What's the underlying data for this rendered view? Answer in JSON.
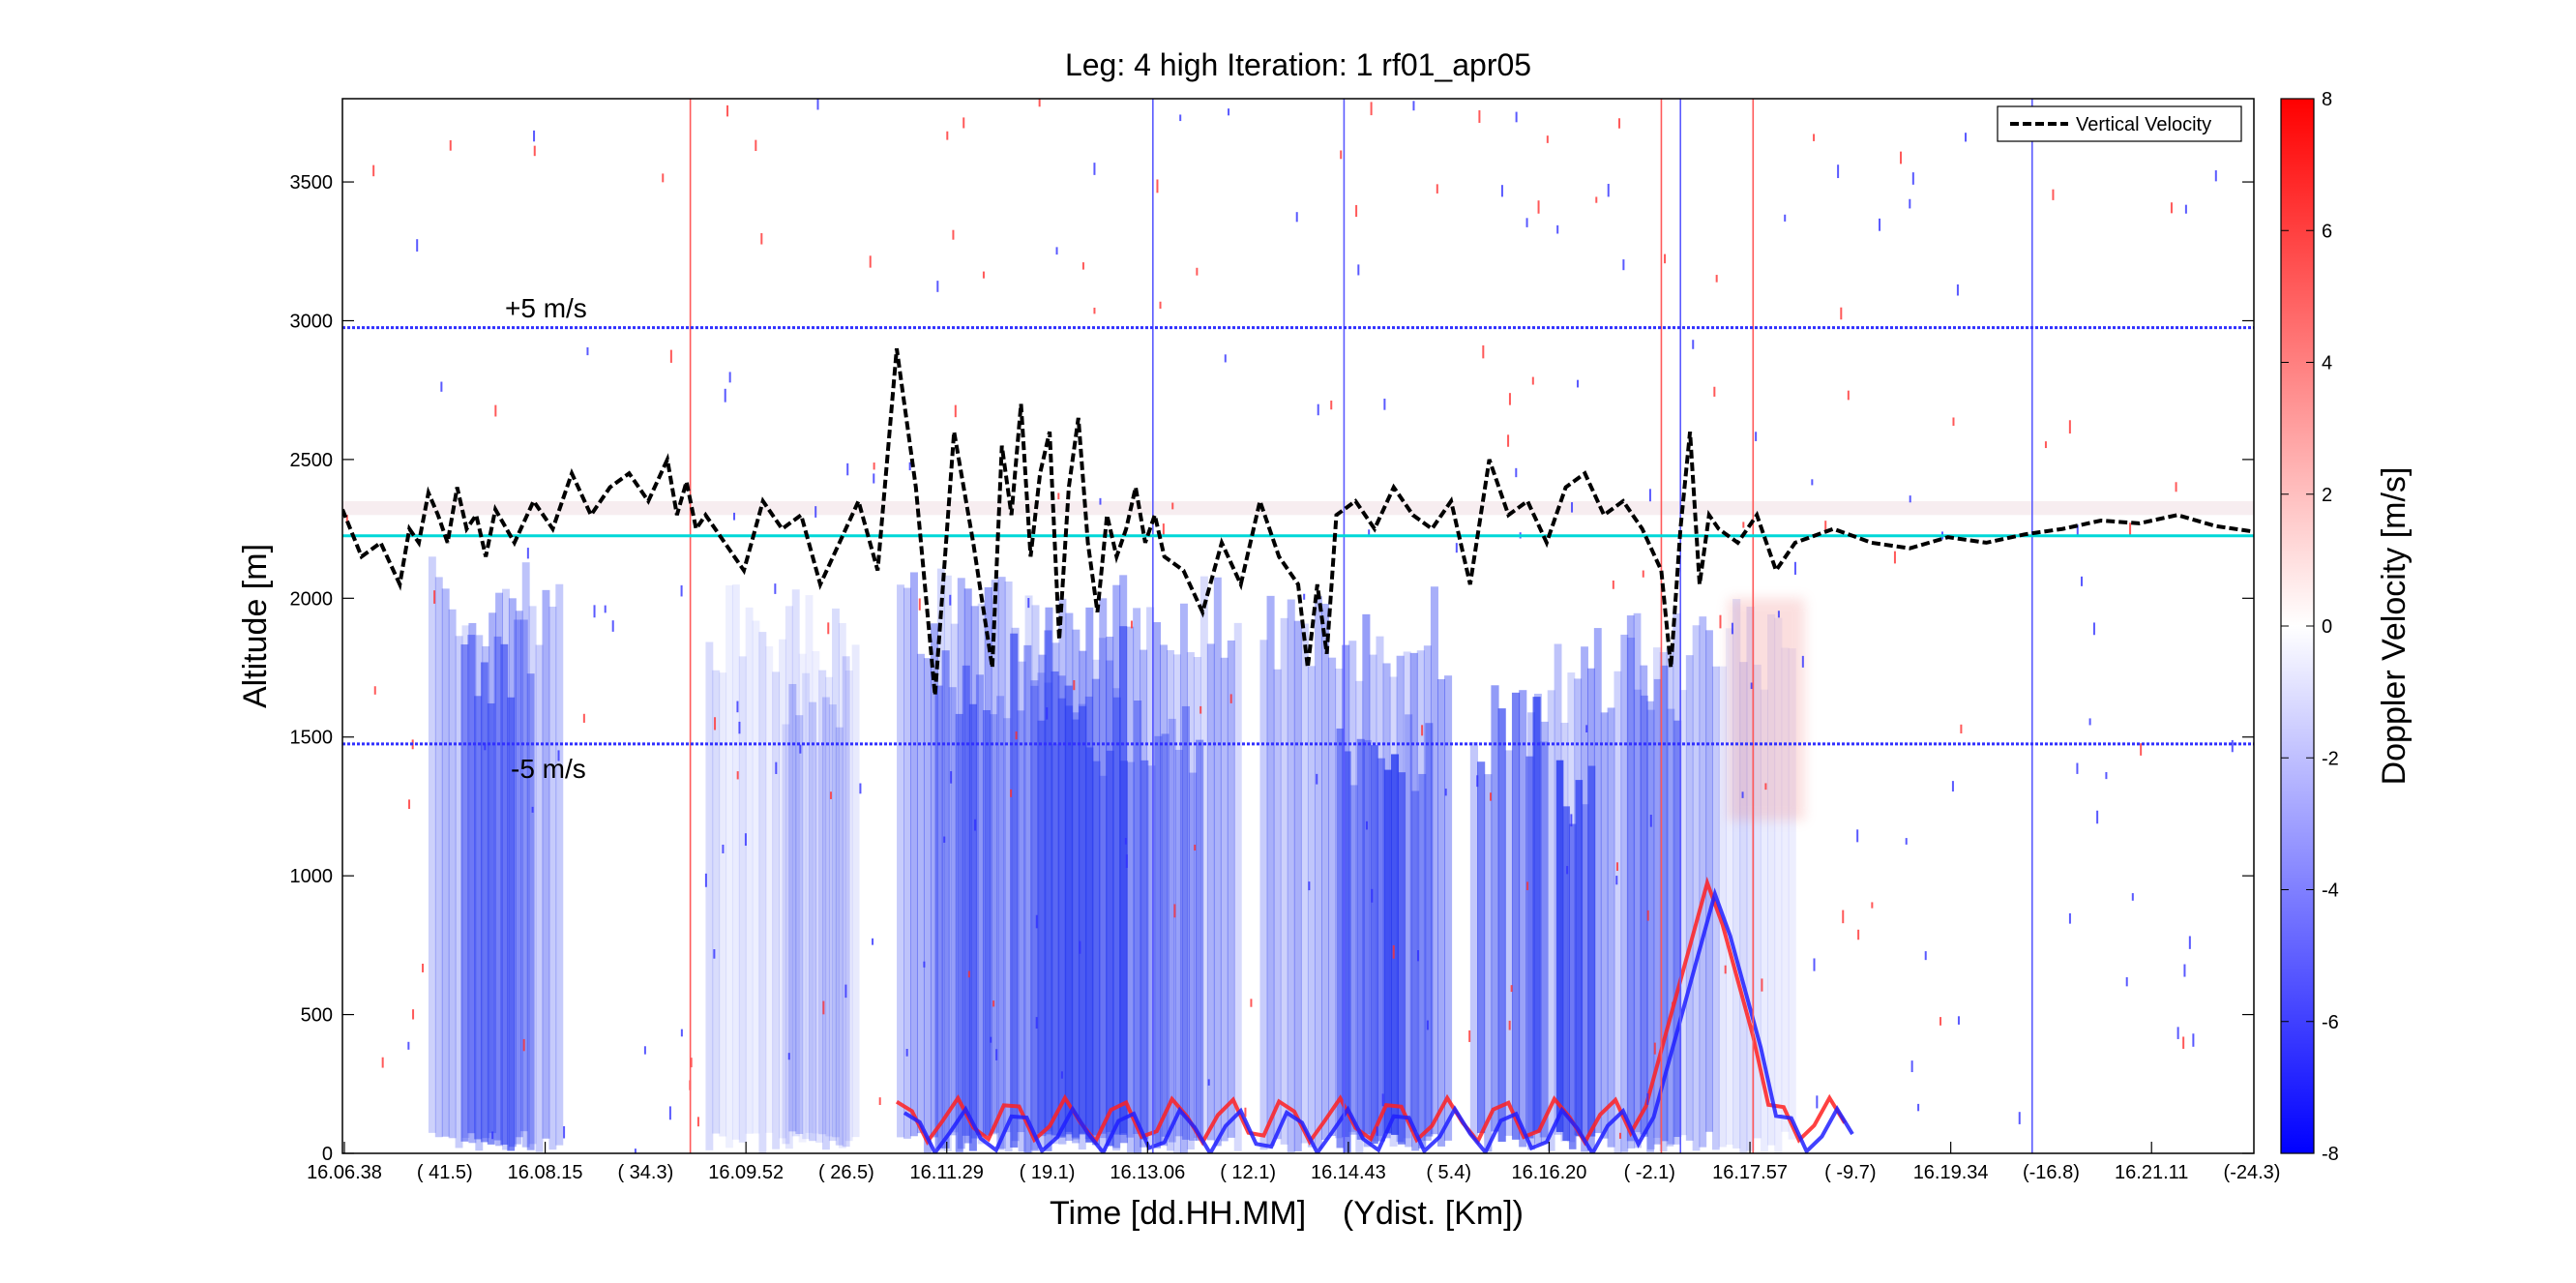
{
  "chart_data": {
    "type": "heatmap",
    "title": "Leg: 4 high Iteration: 1  rf01_apr05",
    "xlabel": "Time [dd.HH.MM]    (Ydist. [Km])",
    "ylabel": "Altitude [m]",
    "ylim": [
      0,
      3800
    ],
    "yticks": [
      0,
      500,
      1000,
      1500,
      2000,
      2500,
      3000,
      3500
    ],
    "x_tick_labels": [
      "16.06.38",
      "( 41.5)",
      "16.08.15",
      "( 34.3)",
      "16.09.52",
      "( 26.5)",
      "16.11.29",
      "( 19.1)",
      "16.13.06",
      "( 12.1)",
      "16.14.43",
      "( 5.4)",
      "16.16.20",
      "( -2.1)",
      "16.17.57",
      "( -9.7)",
      "16.19.34",
      "(-16.8)",
      "16.21.11",
      "(-24.3)"
    ],
    "colorbar": {
      "label": "Doppler Velocity [m/s]",
      "range": [
        -8,
        8
      ],
      "ticks": [
        -8,
        -6,
        -4,
        -2,
        0,
        2,
        4,
        6,
        8
      ],
      "low_color": "#0000ff",
      "mid_color": "#ffffff",
      "high_color": "#ff0000"
    },
    "legend": {
      "position": "top-right",
      "entries": [
        "Vertical Velocity"
      ]
    },
    "annotations": [
      "+5 m/s",
      "-5 m/s"
    ],
    "reference_lines": {
      "plus5_altitude": 2975,
      "minus5_altitude": 1475,
      "zero_altitude": 2225,
      "line_color": "#00d8d8"
    },
    "vertical_markers": [
      {
        "x_frac": 0.182,
        "color": "#ff5a5a"
      },
      {
        "x_frac": 0.424,
        "color": "#5a5aff"
      },
      {
        "x_frac": 0.524,
        "color": "#5a5aff"
      },
      {
        "x_frac": 0.69,
        "color": "#ff5a5a"
      },
      {
        "x_frac": 0.7,
        "color": "#5a5aff"
      },
      {
        "x_frac": 0.738,
        "color": "#ff5a5a"
      },
      {
        "x_frac": 0.884,
        "color": "#5a5aff"
      }
    ],
    "vertical_velocity_series": {
      "name": "Vertical Velocity",
      "x_frac": [
        0.0,
        0.01,
        0.02,
        0.03,
        0.035,
        0.04,
        0.045,
        0.05,
        0.055,
        0.06,
        0.065,
        0.07,
        0.075,
        0.08,
        0.09,
        0.1,
        0.11,
        0.12,
        0.13,
        0.14,
        0.15,
        0.16,
        0.17,
        0.175,
        0.18,
        0.185,
        0.19,
        0.2,
        0.21,
        0.22,
        0.23,
        0.24,
        0.25,
        0.26,
        0.27,
        0.28,
        0.29,
        0.3,
        0.31,
        0.32,
        0.33,
        0.34,
        0.345,
        0.35,
        0.355,
        0.36,
        0.365,
        0.37,
        0.375,
        0.38,
        0.385,
        0.39,
        0.395,
        0.4,
        0.405,
        0.41,
        0.415,
        0.42,
        0.425,
        0.43,
        0.44,
        0.45,
        0.46,
        0.47,
        0.48,
        0.49,
        0.5,
        0.505,
        0.51,
        0.515,
        0.52,
        0.53,
        0.54,
        0.55,
        0.56,
        0.57,
        0.58,
        0.59,
        0.6,
        0.61,
        0.62,
        0.63,
        0.64,
        0.65,
        0.66,
        0.67,
        0.68,
        0.69,
        0.695,
        0.7,
        0.705,
        0.71,
        0.715,
        0.72,
        0.73,
        0.74,
        0.75,
        0.76,
        0.78,
        0.8,
        0.82,
        0.84,
        0.86,
        0.88,
        0.9,
        0.92,
        0.94,
        0.96,
        0.98,
        1.0
      ],
      "y": [
        2320,
        2150,
        2200,
        2050,
        2250,
        2200,
        2380,
        2300,
        2200,
        2400,
        2250,
        2300,
        2150,
        2320,
        2200,
        2350,
        2250,
        2450,
        2300,
        2400,
        2450,
        2350,
        2500,
        2300,
        2420,
        2250,
        2300,
        2200,
        2100,
        2350,
        2250,
        2300,
        2050,
        2200,
        2350,
        2100,
        2900,
        2400,
        1650,
        2600,
        2200,
        1750,
        2550,
        2300,
        2700,
        2150,
        2450,
        2600,
        1850,
        2400,
        2650,
        2200,
        1950,
        2300,
        2150,
        2250,
        2400,
        2200,
        2300,
        2150,
        2100,
        1950,
        2200,
        2050,
        2350,
        2150,
        2050,
        1750,
        2050,
        1800,
        2300,
        2350,
        2250,
        2400,
        2300,
        2250,
        2350,
        2050,
        2500,
        2300,
        2350,
        2200,
        2400,
        2450,
        2300,
        2350,
        2250,
        2100,
        1750,
        2250,
        2600,
        2050,
        2300,
        2250,
        2200,
        2300,
        2100,
        2200,
        2250,
        2200,
        2180,
        2220,
        2200,
        2230,
        2250,
        2280,
        2270,
        2300,
        2260,
        2240
      ]
    }
  }
}
